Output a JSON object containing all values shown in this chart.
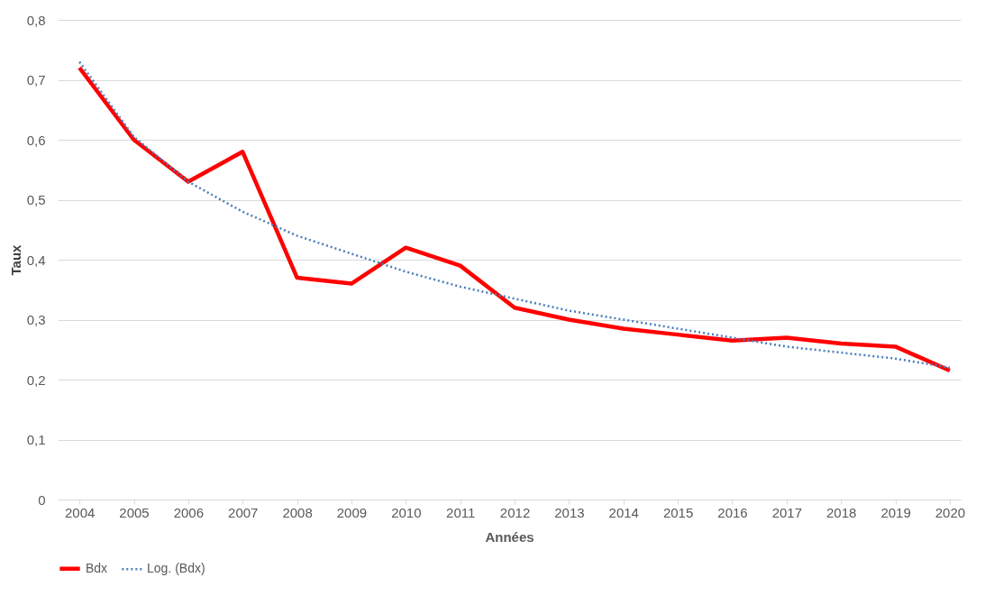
{
  "chart_data": {
    "type": "line",
    "xlabel": "Années",
    "ylabel": "Taux",
    "categories": [
      "2004",
      "2005",
      "2006",
      "2007",
      "2008",
      "2009",
      "2010",
      "2011",
      "2012",
      "2013",
      "2014",
      "2015",
      "2016",
      "2017",
      "2018",
      "2019",
      "2020"
    ],
    "series": [
      {
        "name": "Bdx",
        "color": "#ff0000",
        "line_style": "solid",
        "values": [
          0.72,
          0.6,
          0.53,
          0.58,
          0.37,
          0.36,
          0.42,
          0.39,
          0.32,
          0.3,
          0.285,
          0.275,
          0.265,
          0.27,
          0.26,
          0.255,
          0.215
        ]
      },
      {
        "name": "Log. (Bdx)",
        "color": "#4a7ebb",
        "line_style": "dotted",
        "values": [
          0.73,
          0.605,
          0.53,
          0.48,
          0.44,
          0.41,
          0.38,
          0.355,
          0.335,
          0.315,
          0.3,
          0.285,
          0.27,
          0.255,
          0.245,
          0.235,
          0.22
        ]
      }
    ],
    "ylim": [
      0,
      0.8
    ],
    "yticks": [
      0,
      {
        "value": 0.1,
        "label": "0,1"
      },
      {
        "value": 0.2,
        "label": "0,2"
      },
      {
        "value": 0.3,
        "label": "0,3"
      },
      {
        "value": 0.4,
        "label": "0,4"
      },
      {
        "value": 0.5,
        "label": "0,5"
      },
      {
        "value": 0.6,
        "label": "0,6"
      },
      {
        "value": 0.7,
        "label": "0,7"
      },
      {
        "value": 0.8,
        "label": "0,8"
      }
    ],
    "grid": "y",
    "legend": "bottom",
    "marker": "none"
  }
}
